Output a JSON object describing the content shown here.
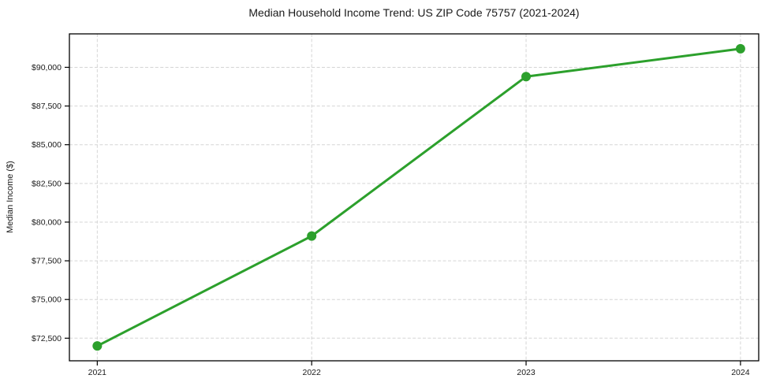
{
  "chart_data": {
    "type": "line",
    "title": "Median Household Income Trend: US ZIP Code 75757 (2021-2024)",
    "xlabel": "",
    "ylabel": "Median Income ($)",
    "categories": [
      2021,
      2022,
      2023,
      2024
    ],
    "values": [
      72000,
      79100,
      89400,
      91200
    ],
    "yticks": [
      {
        "value": 72500,
        "label": "$72,500"
      },
      {
        "value": 75000,
        "label": "$75,000"
      },
      {
        "value": 77500,
        "label": "$77,500"
      },
      {
        "value": 80000,
        "label": "$80,000"
      },
      {
        "value": 82500,
        "label": "$82,500"
      },
      {
        "value": 85000,
        "label": "$85,000"
      },
      {
        "value": 87500,
        "label": "$87,500"
      },
      {
        "value": 90000,
        "label": "$90,000"
      }
    ],
    "xlim": [
      2020.87,
      2024.085
    ],
    "ylim": [
      71040,
      92160
    ],
    "grid": true,
    "grid_style": "dashed",
    "legend": false,
    "marker": "circle",
    "colors": {
      "line": "#2ca02c",
      "marker": "#2ca02c",
      "grid": "#d5d5d5",
      "spine": "#000000",
      "background": "#ffffff"
    }
  }
}
